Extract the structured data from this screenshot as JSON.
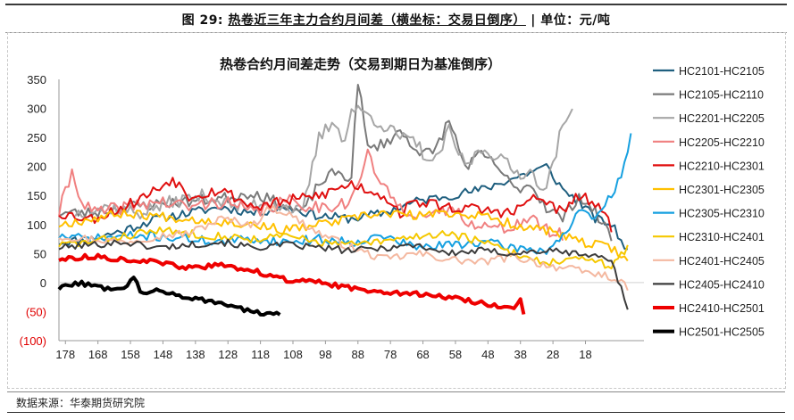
{
  "caption": {
    "figure": "图 29:",
    "title": "热卷近三年主力合约月间差（横坐标：交易日倒序）",
    "unit": "单位：元/吨"
  },
  "source": "数据来源：华泰期货研究院",
  "chart_data": {
    "type": "line",
    "title": "热卷合约月间差走势（交易到期日为基准倒序）",
    "xlabel": "",
    "ylabel": "",
    "x_range": [
      180,
      0
    ],
    "x_ticks": [
      178,
      168,
      158,
      148,
      138,
      128,
      118,
      108,
      98,
      88,
      78,
      68,
      58,
      48,
      38,
      28,
      18
    ],
    "ylim": [
      -100,
      350
    ],
    "y_ticks": [
      -100,
      -50,
      0,
      50,
      100,
      150,
      200,
      250,
      300,
      350
    ],
    "y_tick_labels": [
      "(100)",
      "(50)",
      "0",
      "50",
      "100",
      "150",
      "200",
      "250",
      "300",
      "350"
    ],
    "negative_tick_color": "#e00000",
    "grid": false,
    "legend_position": "right",
    "series": [
      {
        "name": "HC2101-HC2105",
        "color": "#1f5f7f",
        "width": 2,
        "noise": 8,
        "seed": 11,
        "x": [
          180,
          170,
          160,
          150,
          140,
          130,
          120,
          110,
          100,
          90,
          80,
          70,
          60,
          50,
          40,
          30,
          25,
          20,
          15,
          10,
          5
        ],
        "y": [
          70,
          75,
          90,
          110,
          120,
          130,
          120,
          130,
          115,
          110,
          120,
          140,
          150,
          160,
          180,
          200,
          160,
          140,
          110,
          100,
          55
        ]
      },
      {
        "name": "HC2105-HC2110",
        "color": "#7a7a7a",
        "width": 2,
        "noise": 10,
        "seed": 23,
        "x": [
          180,
          170,
          160,
          150,
          140,
          130,
          120,
          110,
          105,
          100,
          95,
          90,
          88,
          85,
          80,
          75,
          70,
          65,
          60,
          55,
          50,
          45,
          40,
          35,
          30,
          25,
          20,
          15,
          10
        ],
        "y": [
          120,
          120,
          130,
          135,
          140,
          145,
          155,
          130,
          120,
          170,
          190,
          180,
          350,
          230,
          240,
          260,
          230,
          220,
          280,
          200,
          220,
          200,
          160,
          170,
          130,
          110,
          150,
          120,
          80
        ]
      },
      {
        "name": "HC2201-HC2205",
        "color": "#a6a6a6",
        "width": 2,
        "noise": 12,
        "seed": 37,
        "x": [
          175,
          165,
          155,
          145,
          135,
          125,
          115,
          105,
          100,
          95,
          92,
          90,
          85,
          80,
          75,
          70,
          65,
          60,
          55,
          50,
          45,
          40,
          35,
          30,
          26,
          22
        ],
        "y": [
          120,
          130,
          120,
          140,
          150,
          130,
          140,
          120,
          250,
          280,
          240,
          300,
          290,
          270,
          250,
          240,
          200,
          260,
          200,
          230,
          220,
          190,
          190,
          160,
          250,
          300
        ]
      },
      {
        "name": "HC2205-HC2210",
        "color": "#f08080",
        "width": 2,
        "noise": 12,
        "seed": 41,
        "x": [
          180,
          176,
          172,
          168,
          160,
          150,
          140,
          130,
          120,
          110,
          100,
          90,
          85,
          80,
          75,
          70,
          65,
          60,
          55,
          50,
          45,
          40,
          35,
          30,
          25
        ],
        "y": [
          120,
          190,
          130,
          120,
          130,
          140,
          130,
          140,
          120,
          140,
          130,
          140,
          220,
          160,
          130,
          120,
          110,
          130,
          110,
          100,
          90,
          100,
          110,
          90,
          80
        ]
      },
      {
        "name": "HC2210-HC2301",
        "color": "#e01010",
        "width": 2,
        "noise": 10,
        "seed": 53,
        "x": [
          180,
          170,
          160,
          150,
          145,
          140,
          130,
          120,
          110,
          100,
          90,
          80,
          75,
          70,
          60,
          50,
          40,
          35,
          30,
          25,
          20,
          15,
          10
        ],
        "y": [
          120,
          110,
          130,
          160,
          180,
          150,
          160,
          130,
          140,
          150,
          170,
          150,
          120,
          140,
          130,
          125,
          120,
          145,
          140,
          120,
          150,
          135,
          95
        ]
      },
      {
        "name": "HC2301-HC2305",
        "color": "#ffc000",
        "width": 2,
        "noise": 8,
        "seed": 67,
        "x": [
          180,
          170,
          160,
          150,
          140,
          130,
          120,
          110,
          100,
          90,
          80,
          70,
          60,
          50,
          40,
          30,
          20,
          10,
          5
        ],
        "y": [
          100,
          110,
          120,
          115,
          110,
          105,
          100,
          90,
          100,
          110,
          120,
          115,
          120,
          115,
          100,
          90,
          70,
          60,
          40
        ]
      },
      {
        "name": "HC2305-HC2310",
        "color": "#16a0e0",
        "width": 2,
        "noise": 8,
        "seed": 71,
        "x": [
          180,
          170,
          160,
          150,
          140,
          130,
          120,
          110,
          100,
          90,
          80,
          70,
          60,
          50,
          40,
          30,
          25,
          20,
          15,
          10,
          6,
          4
        ],
        "y": [
          80,
          75,
          80,
          80,
          75,
          70,
          75,
          70,
          75,
          70,
          80,
          60,
          65,
          70,
          60,
          55,
          80,
          120,
          110,
          150,
          200,
          250
        ]
      },
      {
        "name": "HC2310-HC2401",
        "color": "#f5c800",
        "width": 2,
        "noise": 7,
        "seed": 83,
        "x": [
          180,
          170,
          160,
          150,
          140,
          130,
          120,
          110,
          100,
          90,
          80,
          70,
          60,
          50,
          40,
          30,
          20,
          10,
          5
        ],
        "y": [
          65,
          70,
          80,
          90,
          85,
          80,
          75,
          80,
          70,
          65,
          70,
          80,
          85,
          70,
          50,
          35,
          40,
          30,
          60
        ]
      },
      {
        "name": "HC2401-HC2405",
        "color": "#f4b8a0",
        "width": 2,
        "noise": 7,
        "seed": 97,
        "x": [
          180,
          170,
          160,
          150,
          140,
          130,
          120,
          115,
          110,
          100,
          90,
          80,
          70,
          60,
          50,
          40,
          30,
          20,
          10,
          5
        ],
        "y": [
          80,
          75,
          70,
          80,
          85,
          110,
          100,
          130,
          120,
          85,
          60,
          40,
          50,
          40,
          35,
          45,
          30,
          20,
          10,
          -10
        ]
      },
      {
        "name": "HC2405-HC2410",
        "color": "#3c3c3c",
        "width": 2,
        "noise": 6,
        "seed": 101,
        "x": [
          180,
          170,
          160,
          150,
          140,
          130,
          120,
          110,
          100,
          90,
          80,
          70,
          60,
          50,
          40,
          30,
          20,
          10,
          5
        ],
        "y": [
          60,
          65,
          70,
          60,
          65,
          70,
          60,
          65,
          60,
          55,
          60,
          65,
          50,
          55,
          50,
          55,
          50,
          40,
          -45
        ]
      },
      {
        "name": "HC2410-HC2501",
        "color": "#ee0000",
        "width": 4,
        "noise": 4,
        "seed": 113,
        "x": [
          180,
          170,
          160,
          150,
          140,
          130,
          120,
          110,
          100,
          90,
          80,
          70,
          60,
          50,
          45,
          40,
          38,
          37
        ],
        "y": [
          40,
          45,
          40,
          35,
          25,
          30,
          20,
          5,
          0,
          -10,
          -15,
          -20,
          -25,
          -35,
          -40,
          -45,
          -30,
          -55
        ]
      },
      {
        "name": "HC2501-HC2505",
        "color": "#000000",
        "width": 4,
        "noise": 4,
        "seed": 127,
        "x": [
          180,
          175,
          170,
          165,
          160,
          157,
          155,
          150,
          145,
          140,
          135,
          130,
          125,
          120,
          115,
          112
        ],
        "y": [
          -10,
          0,
          -5,
          -10,
          -8,
          10,
          -15,
          -15,
          -20,
          -25,
          -30,
          -35,
          -45,
          -50,
          -55,
          -55
        ]
      }
    ]
  }
}
